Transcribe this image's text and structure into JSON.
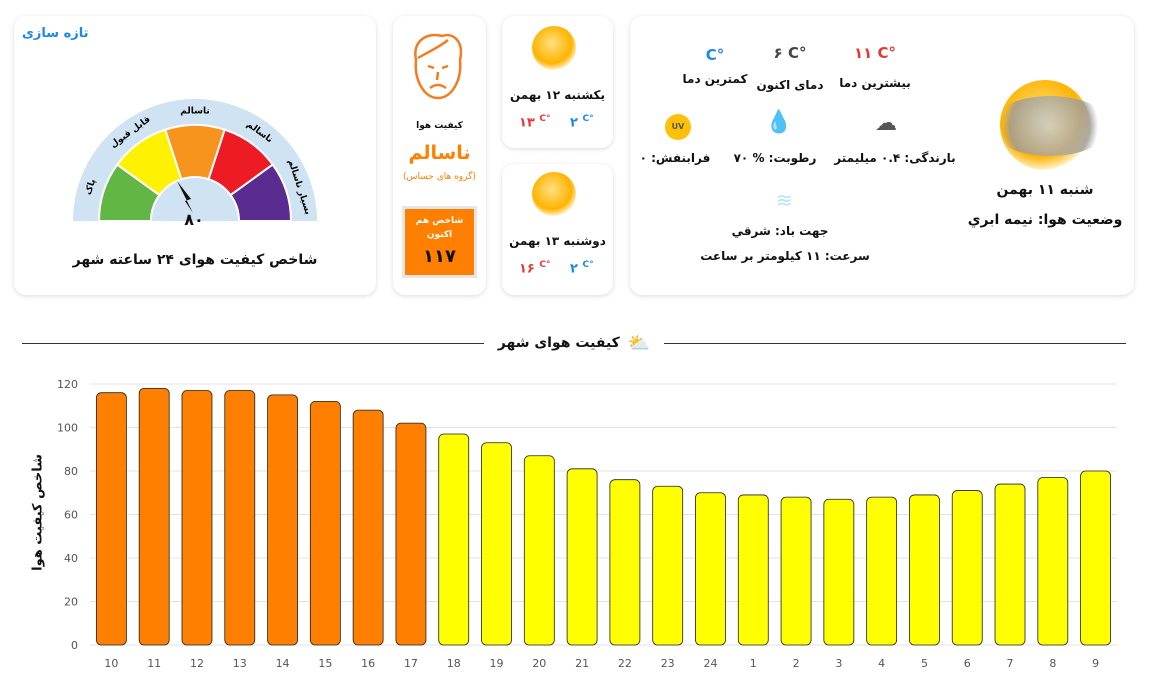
{
  "refresh": "تازه سازی",
  "gauge": {
    "title": "شاخص کیفیت هوای ۲۴ ساعته شهر",
    "value": "۸۰",
    "segments": [
      {
        "label": "پاک",
        "color": "#62b744"
      },
      {
        "label": "قابل قبول",
        "color": "#fff200"
      },
      {
        "label": "ناسالم",
        "color": "#f7941d"
      },
      {
        "label": "ناسالم",
        "color": "#ed1c24"
      },
      {
        "label": "بسیار ناسالم",
        "color": "#5b2c8f"
      }
    ]
  },
  "aqi": {
    "label": "کیفیت هوا",
    "status": "ناسالم",
    "group": "(گروه های حساس)",
    "now_label": "شاخص هم اکنون",
    "now_value": "۱۱۷",
    "accent": "#ff7f00"
  },
  "forecast": [
    {
      "day": "یکشنبه ۱۲ بهمن",
      "max": "۱۳",
      "min": "۲",
      "unit": "C°"
    },
    {
      "day": "دوشنبه ۱۳ بهمن",
      "max": "۱۶",
      "min": "۲",
      "unit": "C°"
    }
  ],
  "today": {
    "date": "شنبه ۱۱ بهمن",
    "condition": "وضعیت هوا: نیمه ابري",
    "max_label": "بیشترین دما",
    "max": "۱۱",
    "current_label": "دمای اکنون",
    "current": "۶",
    "min_label": "کمترین دما",
    "min": "",
    "unit": "C°",
    "rain": "بارندگی: ۰.۴ میلیمتر",
    "humidity": "رطوبت: % ۷۰",
    "uv": "فرابنفش: ۰",
    "uv_badge": "UV",
    "wind_dir": "جهت باد: شرقي",
    "wind_speed": "سرعت: ۱۱ کیلومتر بر ساعت"
  },
  "section_title": "کیفیت هوای شهر",
  "chart_data": {
    "type": "bar",
    "title": "کیفیت هوای شهر",
    "ylabel": "شاخص کیفیت هوا",
    "xlabel": "",
    "ylim": [
      0,
      120
    ],
    "yticks": [
      0,
      20,
      40,
      60,
      80,
      100,
      120
    ],
    "grid": true,
    "categories": [
      "10",
      "11",
      "12",
      "13",
      "14",
      "15",
      "16",
      "17",
      "18",
      "19",
      "20",
      "21",
      "22",
      "23",
      "24",
      "1",
      "2",
      "3",
      "4",
      "5",
      "6",
      "7",
      "8",
      "9"
    ],
    "values": [
      116,
      118,
      117,
      117,
      115,
      112,
      108,
      102,
      97,
      93,
      87,
      81,
      76,
      73,
      70,
      69,
      68,
      67,
      68,
      69,
      71,
      74,
      77,
      80
    ],
    "colors": {
      "unhealthy_sensitive": "#ff7f00",
      "moderate": "#ffff00"
    }
  }
}
